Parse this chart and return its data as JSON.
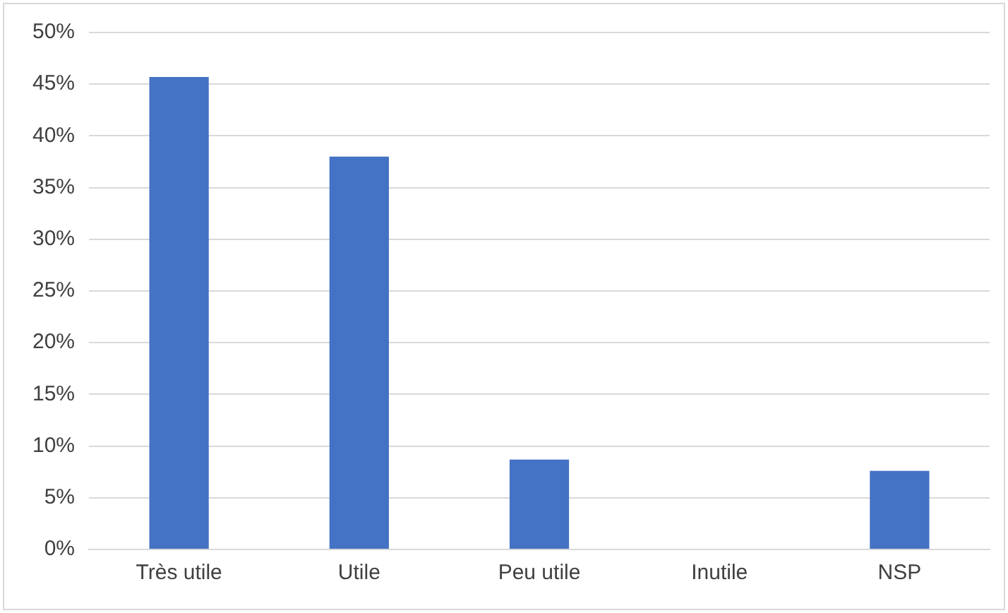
{
  "chart_data": {
    "type": "bar",
    "categories": [
      "Très utile",
      "Utile",
      "Peu utile",
      "Inutile",
      "NSP"
    ],
    "values": [
      45.7,
      38.0,
      8.7,
      0,
      7.6
    ],
    "color": "#4472c4",
    "ylim": [
      0,
      50
    ],
    "yticks": [
      {
        "value": 0,
        "label": "0%"
      },
      {
        "value": 5,
        "label": "5%"
      },
      {
        "value": 10,
        "label": "10%"
      },
      {
        "value": 15,
        "label": "15%"
      },
      {
        "value": 20,
        "label": "20%"
      },
      {
        "value": 25,
        "label": "25%"
      },
      {
        "value": 30,
        "label": "30%"
      },
      {
        "value": 35,
        "label": "35%"
      },
      {
        "value": 40,
        "label": "40%"
      },
      {
        "value": 45,
        "label": "45%"
      },
      {
        "value": 50,
        "label": "50%"
      }
    ],
    "grid": "y"
  }
}
